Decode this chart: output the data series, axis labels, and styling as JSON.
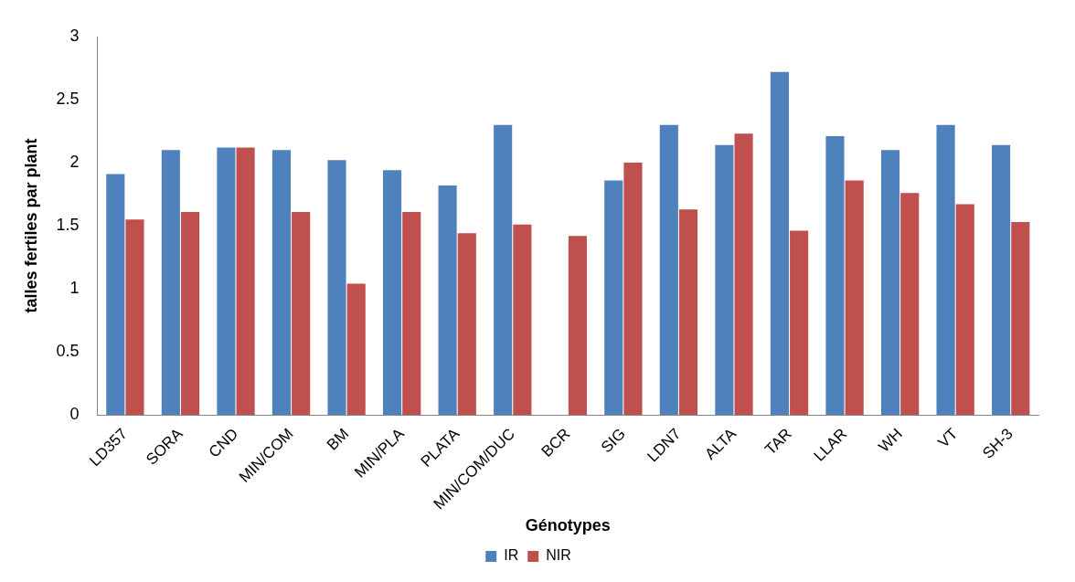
{
  "chart_data": {
    "type": "bar",
    "categories": [
      "LD357",
      "SORA",
      "CND",
      "MIN/COM",
      "BM",
      "MIN/PLA",
      "PLATA",
      "MIN/COM/DUC",
      "BCR",
      "SIG",
      "LDN7",
      "ALTA",
      "TAR",
      "LLAR",
      "WH",
      "VT",
      "SH-3"
    ],
    "series": [
      {
        "name": "IR",
        "color": "#4f81bd",
        "values": [
          1.91,
          2.1,
          2.12,
          2.1,
          2.02,
          1.94,
          1.82,
          2.3,
          0,
          1.86,
          2.3,
          2.14,
          2.72,
          2.21,
          2.1,
          2.3,
          2.14
        ]
      },
      {
        "name": "NIR",
        "color": "#c0504d",
        "values": [
          1.55,
          1.61,
          2.12,
          1.61,
          1.04,
          1.61,
          1.44,
          1.51,
          1.42,
          2.0,
          1.63,
          2.23,
          1.46,
          1.86,
          1.76,
          1.67,
          1.53
        ]
      }
    ],
    "xlabel": "Génotypes",
    "ylabel": "talles fertiles par plant",
    "ylim": [
      0,
      3
    ],
    "yticks": [
      0,
      0.5,
      1,
      1.5,
      2,
      2.5,
      3
    ],
    "grid": false,
    "legend": "bottom"
  }
}
